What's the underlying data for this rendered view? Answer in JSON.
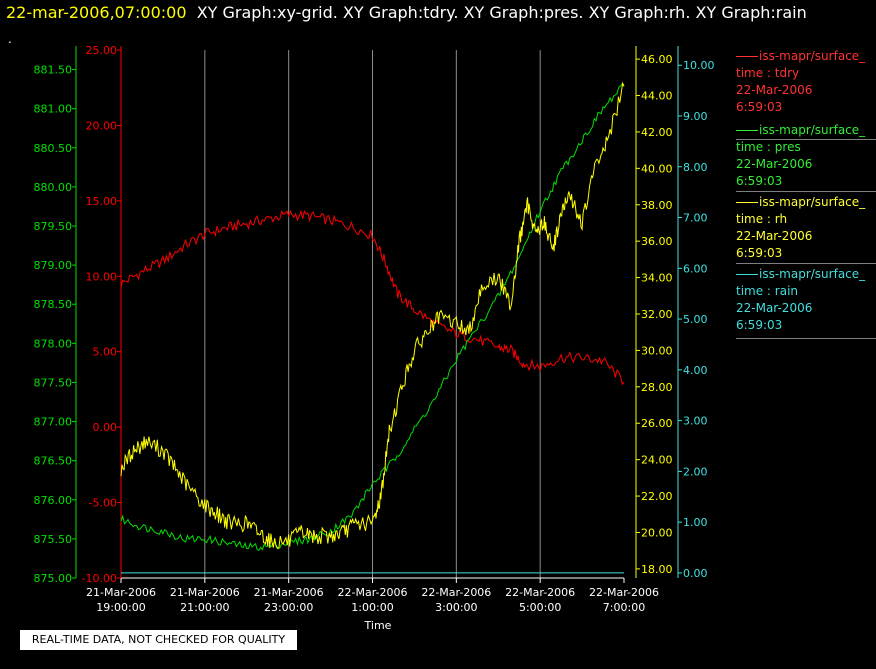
{
  "header": {
    "datetime": "22-mar-2006,07:00:00",
    "graphs": "XY Graph:xy-grid.  XY Graph:tdry.  XY Graph:pres.  XY Graph:rh.  XY Graph:rain"
  },
  "marker": ".",
  "quality_note": "REAL-TIME DATA, NOT CHECKED FOR QUALITY",
  "colors": {
    "tdry": "#ff0000",
    "pres": "#00e000",
    "rh": "#ffff00",
    "rain": "#40e0e0",
    "grid": "#8c8c8c",
    "axis_text": "#ffffff"
  },
  "legend": [
    {
      "source": "iss-mapr/surface_",
      "var_line": "time : tdry",
      "date": "22-Mar-2006",
      "time": "6:59:03"
    },
    {
      "source": "iss-mapr/surface_",
      "var_line": "time : pres",
      "date": "22-Mar-2006",
      "time": "6:59:03"
    },
    {
      "source": "iss-mapr/surface_",
      "var_line": "time : rh",
      "date": "22-Mar-2006",
      "time": "6:59:03"
    },
    {
      "source": "iss-mapr/surface_",
      "var_line": "time : rain",
      "date": "22-Mar-2006",
      "time": "6:59:03"
    }
  ],
  "chart_data": {
    "type": "line",
    "xlabel": "Time",
    "x_range_hours": [
      19,
      31
    ],
    "grid": true,
    "legend_position": "right",
    "x_ticks": [
      {
        "hour": 19,
        "date": "21-Mar-2006",
        "time": "19:00:00"
      },
      {
        "hour": 21,
        "date": "21-Mar-2006",
        "time": "21:00:00"
      },
      {
        "hour": 23,
        "date": "21-Mar-2006",
        "time": "23:00:00"
      },
      {
        "hour": 25,
        "date": "22-Mar-2006",
        "time": "1:00:00"
      },
      {
        "hour": 27,
        "date": "22-Mar-2006",
        "time": "3:00:00"
      },
      {
        "hour": 29,
        "date": "22-Mar-2006",
        "time": "5:00:00"
      },
      {
        "hour": 31,
        "date": "22-Mar-2006",
        "time": "7:00:00"
      }
    ],
    "axes": {
      "pres": {
        "side": "outer-left",
        "min": 875.0,
        "max": 881.75,
        "ticks": [
          "875.00",
          "875.50",
          "876.00",
          "876.50",
          "877.00",
          "877.50",
          "878.00",
          "878.50",
          "879.00",
          "879.50",
          "880.00",
          "880.50",
          "881.00",
          "881.50"
        ]
      },
      "tdry": {
        "side": "inner-left",
        "min": -10,
        "max": 25,
        "ticks": [
          "-10.00",
          "-5.00",
          "0.00",
          "5.00",
          "10.00",
          "15.00",
          "20.00",
          "25.00"
        ]
      },
      "rh": {
        "side": "inner-right",
        "min": 17.5,
        "max": 46.5,
        "ticks": [
          "18.00",
          "20.00",
          "22.00",
          "24.00",
          "26.00",
          "28.00",
          "30.00",
          "32.00",
          "34.00",
          "36.00",
          "38.00",
          "40.00",
          "42.00",
          "44.00",
          "46.00"
        ]
      },
      "rain": {
        "side": "outer-right",
        "min": -0.1,
        "max": 10.3,
        "ticks": [
          "0.00",
          "1.00",
          "2.00",
          "3.00",
          "4.00",
          "5.00",
          "6.00",
          "7.00",
          "8.00",
          "9.00",
          "10.00"
        ]
      }
    },
    "series": [
      {
        "name": "tdry",
        "axis": "tdry",
        "x": [
          19.0,
          19.5,
          20.0,
          20.5,
          21.0,
          21.5,
          22.0,
          22.5,
          23.0,
          23.5,
          24.0,
          24.5,
          25.0,
          25.3,
          25.6,
          26.0,
          26.5,
          27.0,
          27.5,
          28.0,
          28.3,
          28.6,
          29.0,
          29.5,
          30.0,
          30.5,
          31.0
        ],
        "y": [
          9.5,
          10.3,
          11.0,
          12.0,
          12.8,
          13.2,
          13.5,
          13.8,
          14.1,
          14.0,
          13.7,
          13.3,
          12.7,
          11.0,
          8.8,
          7.8,
          6.8,
          6.2,
          5.8,
          5.3,
          5.1,
          4.2,
          4.0,
          4.6,
          4.6,
          4.4,
          3.0
        ]
      },
      {
        "name": "pres",
        "axis": "pres",
        "x": [
          19.0,
          19.5,
          20.0,
          20.5,
          21.0,
          21.5,
          22.0,
          22.5,
          23.0,
          23.5,
          24.0,
          24.5,
          25.0,
          25.5,
          26.0,
          26.5,
          27.0,
          27.5,
          28.0,
          28.5,
          29.0,
          29.5,
          30.0,
          30.5,
          31.0
        ],
        "y": [
          875.75,
          875.65,
          875.6,
          875.5,
          875.5,
          875.45,
          875.4,
          875.4,
          875.45,
          875.5,
          875.6,
          875.8,
          876.2,
          876.5,
          876.9,
          877.3,
          877.8,
          878.2,
          878.6,
          879.1,
          879.7,
          880.2,
          880.6,
          881.0,
          881.3
        ]
      },
      {
        "name": "rh",
        "axis": "rh",
        "x": [
          19.0,
          19.3,
          19.6,
          20.0,
          20.3,
          20.6,
          21.0,
          21.3,
          21.6,
          22.0,
          22.3,
          22.6,
          23.0,
          23.3,
          23.6,
          24.0,
          24.3,
          24.6,
          25.0,
          25.2,
          25.4,
          25.7,
          26.0,
          26.3,
          26.6,
          27.0,
          27.3,
          27.6,
          28.0,
          28.3,
          28.5,
          28.7,
          28.9,
          29.1,
          29.3,
          29.5,
          29.7,
          30.0,
          30.3,
          30.6,
          31.0
        ],
        "y": [
          23.5,
          24.5,
          25.0,
          24.5,
          23.5,
          22.5,
          21.5,
          21.0,
          20.5,
          20.5,
          20.0,
          19.5,
          19.5,
          20.0,
          19.8,
          19.8,
          20.0,
          20.5,
          20.5,
          22.0,
          25.5,
          28.0,
          30.0,
          31.0,
          31.8,
          31.5,
          31.0,
          33.5,
          34.0,
          32.5,
          36.0,
          38.0,
          36.5,
          37.0,
          35.5,
          37.5,
          38.5,
          37.0,
          40.0,
          41.5,
          44.5
        ]
      },
      {
        "name": "rain",
        "axis": "rain",
        "x": [
          19,
          31
        ],
        "y": [
          0.0,
          0.0
        ]
      }
    ]
  }
}
